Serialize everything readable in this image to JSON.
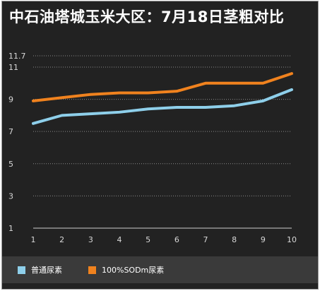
{
  "title": "中石油塔城玉米大区：7月18日茎粗对比",
  "chart_data": {
    "type": "line",
    "title": "中石油塔城玉米大区：7月18日茎粗对比",
    "x": [
      1,
      2,
      3,
      4,
      5,
      6,
      7,
      8,
      9,
      10
    ],
    "xlabel": "",
    "ylabel": "",
    "ylim": [
      1,
      11.7
    ],
    "yticks": [
      1,
      3,
      5,
      7,
      9,
      11,
      11.7
    ],
    "grid": true,
    "legend": "bottom",
    "series": [
      {
        "name": "普通尿素",
        "color": "#8ecfea",
        "values": [
          7.5,
          8.0,
          8.1,
          8.2,
          8.4,
          8.5,
          8.5,
          8.6,
          8.9,
          9.6
        ]
      },
      {
        "name": "100%SODm尿素",
        "color": "#f0821e",
        "values": [
          8.9,
          9.1,
          9.3,
          9.4,
          9.4,
          9.5,
          10.0,
          10.0,
          10.0,
          10.6
        ]
      }
    ]
  }
}
